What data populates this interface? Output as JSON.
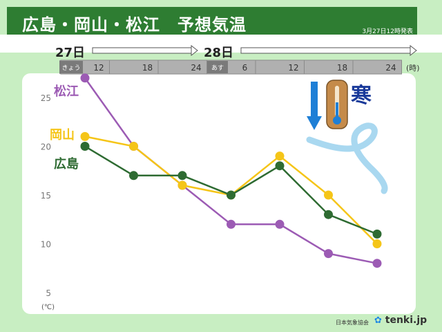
{
  "header": {
    "title": "広島・岡山・松江　予想気温",
    "issued": "3月27日12時発表"
  },
  "timeline": {
    "days": [
      {
        "label": "27日",
        "sub": "きょう"
      },
      {
        "label": "28日",
        "sub": "あす"
      }
    ],
    "hour_unit": "(時)"
  },
  "chart_data": {
    "type": "line",
    "categories": [
      "12",
      "18",
      "24",
      "6",
      "12",
      "18",
      "24"
    ],
    "series": [
      {
        "name": "松江",
        "color": "#9c5bb4",
        "values": [
          27,
          20,
          16,
          12,
          12,
          9,
          8
        ]
      },
      {
        "name": "岡山",
        "color": "#f5c518",
        "values": [
          21,
          20,
          16,
          15,
          19,
          15,
          10
        ]
      },
      {
        "name": "広島",
        "color": "#2e6b32",
        "values": [
          20,
          17,
          17,
          15,
          18,
          13,
          11
        ]
      }
    ],
    "ylabel": "(℃)",
    "yticks": [
      5,
      10,
      15,
      20,
      25
    ],
    "ylim": [
      5,
      27
    ],
    "grid": false,
    "legend": "left, next to each line start",
    "annotation": {
      "text": "寒",
      "icon": "thermometer-down-icon"
    }
  },
  "source": {
    "org": "日本気象協会",
    "logo": "tenki.jp"
  }
}
